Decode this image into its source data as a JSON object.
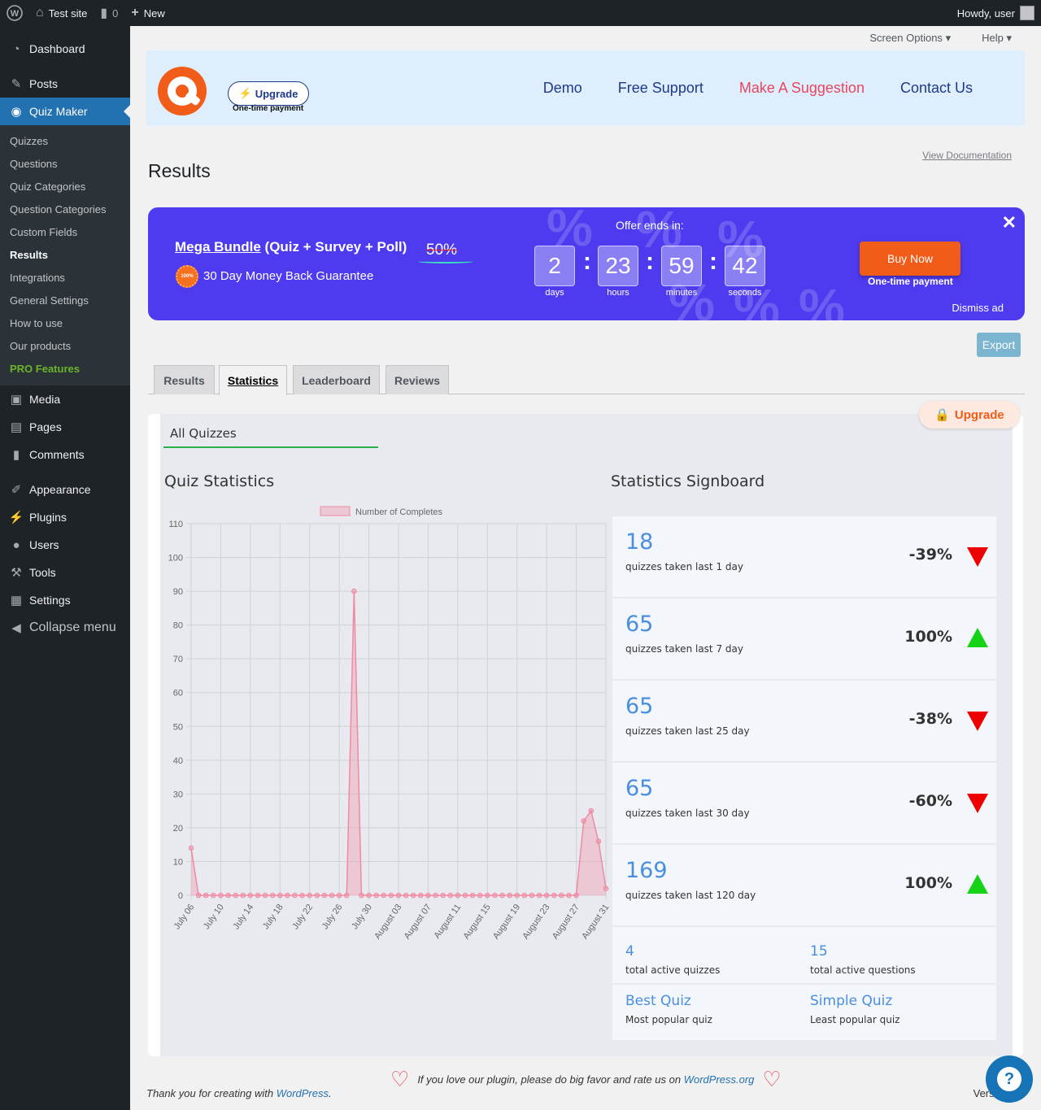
{
  "adminbar": {
    "site_name": "Test site",
    "comments_count": "0",
    "new_label": "New",
    "howdy": "Howdy, user"
  },
  "sidebar": {
    "dashboard": "Dashboard",
    "posts": "Posts",
    "quiz_maker": "Quiz Maker",
    "submenu": [
      "Quizzes",
      "Questions",
      "Quiz Categories",
      "Question Categories",
      "Custom Fields",
      "Results",
      "Integrations",
      "General Settings",
      "How to use",
      "Our products",
      "PRO Features"
    ],
    "media": "Media",
    "pages": "Pages",
    "comments": "Comments",
    "appearance": "Appearance",
    "plugins": "Plugins",
    "users": "Users",
    "tools": "Tools",
    "settings": "Settings",
    "collapse": "Collapse menu"
  },
  "screen_meta": {
    "screen_options": "Screen Options",
    "help": "Help"
  },
  "plugin_header": {
    "upgrade": "Upgrade",
    "one_time": "One-time payment",
    "nav": [
      "Demo",
      "Free Support",
      "Make A Suggestion",
      "Contact Us"
    ]
  },
  "page": {
    "view_doc": "View Documentation",
    "title": "Results"
  },
  "banner": {
    "title_link": "Mega Bundle",
    "title_rest": "(Quiz + Survey + Poll)",
    "discount": "50%",
    "badge": "100%",
    "guarantee": "30 Day Money Back Guarantee",
    "offer_ends": "Offer ends in:",
    "countdown": [
      {
        "value": "2",
        "label": "days"
      },
      {
        "value": "23",
        "label": "hours"
      },
      {
        "value": "59",
        "label": "minutes"
      },
      {
        "value": "42",
        "label": "seconds"
      }
    ],
    "buy_now": "Buy Now",
    "one_time": "One-time payment",
    "close": "✕",
    "dismiss": "Dismiss ad"
  },
  "export": "Export",
  "tabs": [
    "Results",
    "Statistics",
    "Leaderboard",
    "Reviews"
  ],
  "stats": {
    "upgrade": "Upgrade",
    "quiz_select": "All Quizzes",
    "chart_title": "Quiz Statistics",
    "signboard_title": "Statistics Signboard"
  },
  "chart_data": {
    "type": "area",
    "legend": "Number of Completes",
    "ylim": [
      0,
      110
    ],
    "yticks": [
      0,
      10,
      20,
      30,
      40,
      50,
      60,
      70,
      80,
      90,
      100,
      110
    ],
    "xtick_labels": [
      "July 06",
      "July 10",
      "July 14",
      "July 18",
      "July 22",
      "July 26",
      "July 30",
      "August 03",
      "August 07",
      "August 11",
      "August 15",
      "August 19",
      "August 23",
      "August 27",
      "August 31"
    ],
    "series": [
      {
        "name": "Number of Completes",
        "color": "#f08aa2",
        "x": [
          "July 06",
          "July 07",
          "July 08",
          "July 09",
          "July 10",
          "July 11",
          "July 12",
          "July 13",
          "July 14",
          "July 15",
          "July 16",
          "July 17",
          "July 18",
          "July 19",
          "July 20",
          "July 21",
          "July 22",
          "July 23",
          "July 24",
          "July 25",
          "July 26",
          "July 27",
          "July 28",
          "July 29",
          "July 30",
          "July 31",
          "August 01",
          "August 02",
          "August 03",
          "August 04",
          "August 05",
          "August 06",
          "August 07",
          "August 08",
          "August 09",
          "August 10",
          "August 11",
          "August 12",
          "August 13",
          "August 14",
          "August 15",
          "August 16",
          "August 17",
          "August 18",
          "August 19",
          "August 20",
          "August 21",
          "August 22",
          "August 23",
          "August 24",
          "August 25",
          "August 26",
          "August 27",
          "August 28",
          "August 29",
          "August 30",
          "August 31"
        ],
        "values": [
          14,
          0,
          0,
          0,
          0,
          0,
          0,
          0,
          0,
          0,
          0,
          0,
          0,
          0,
          0,
          0,
          0,
          0,
          0,
          0,
          0,
          0,
          90,
          0,
          0,
          0,
          0,
          0,
          0,
          0,
          0,
          0,
          0,
          0,
          0,
          0,
          0,
          0,
          0,
          0,
          0,
          0,
          0,
          0,
          0,
          0,
          0,
          0,
          0,
          0,
          0,
          0,
          0,
          22,
          25,
          16,
          2
        ]
      }
    ]
  },
  "signboard": {
    "rows": [
      {
        "value": "18",
        "label": "quizzes taken last 1 day",
        "pct": "-39%",
        "dir": "down"
      },
      {
        "value": "65",
        "label": "quizzes taken last 7 day",
        "pct": "100%",
        "dir": "up"
      },
      {
        "value": "65",
        "label": "quizzes taken last 25 day",
        "pct": "-38%",
        "dir": "down"
      },
      {
        "value": "65",
        "label": "quizzes taken last 30 day",
        "pct": "-60%",
        "dir": "down"
      },
      {
        "value": "169",
        "label": "quizzes taken last 120 day",
        "pct": "100%",
        "dir": "up"
      }
    ],
    "active_quizzes": {
      "value": "4",
      "label": "total active quizzes"
    },
    "active_questions": {
      "value": "15",
      "label": "total active questions"
    },
    "best_quiz": {
      "value": "Best Quiz",
      "label": "Most popular quiz"
    },
    "simple_quiz": {
      "value": "Simple Quiz",
      "label": "Least popular quiz"
    }
  },
  "footer": {
    "love_text": "If you love our plugin, please do big favor and rate us on",
    "love_link": "WordPress.org",
    "thanks_text": "Thank you for creating with",
    "thanks_link": "WordPress",
    "version": "Version"
  },
  "colors": {
    "accent": "#2271b1",
    "banner": "#4e3bef",
    "orange": "#f25c19",
    "up": "#17d317",
    "down": "#ee0000"
  }
}
